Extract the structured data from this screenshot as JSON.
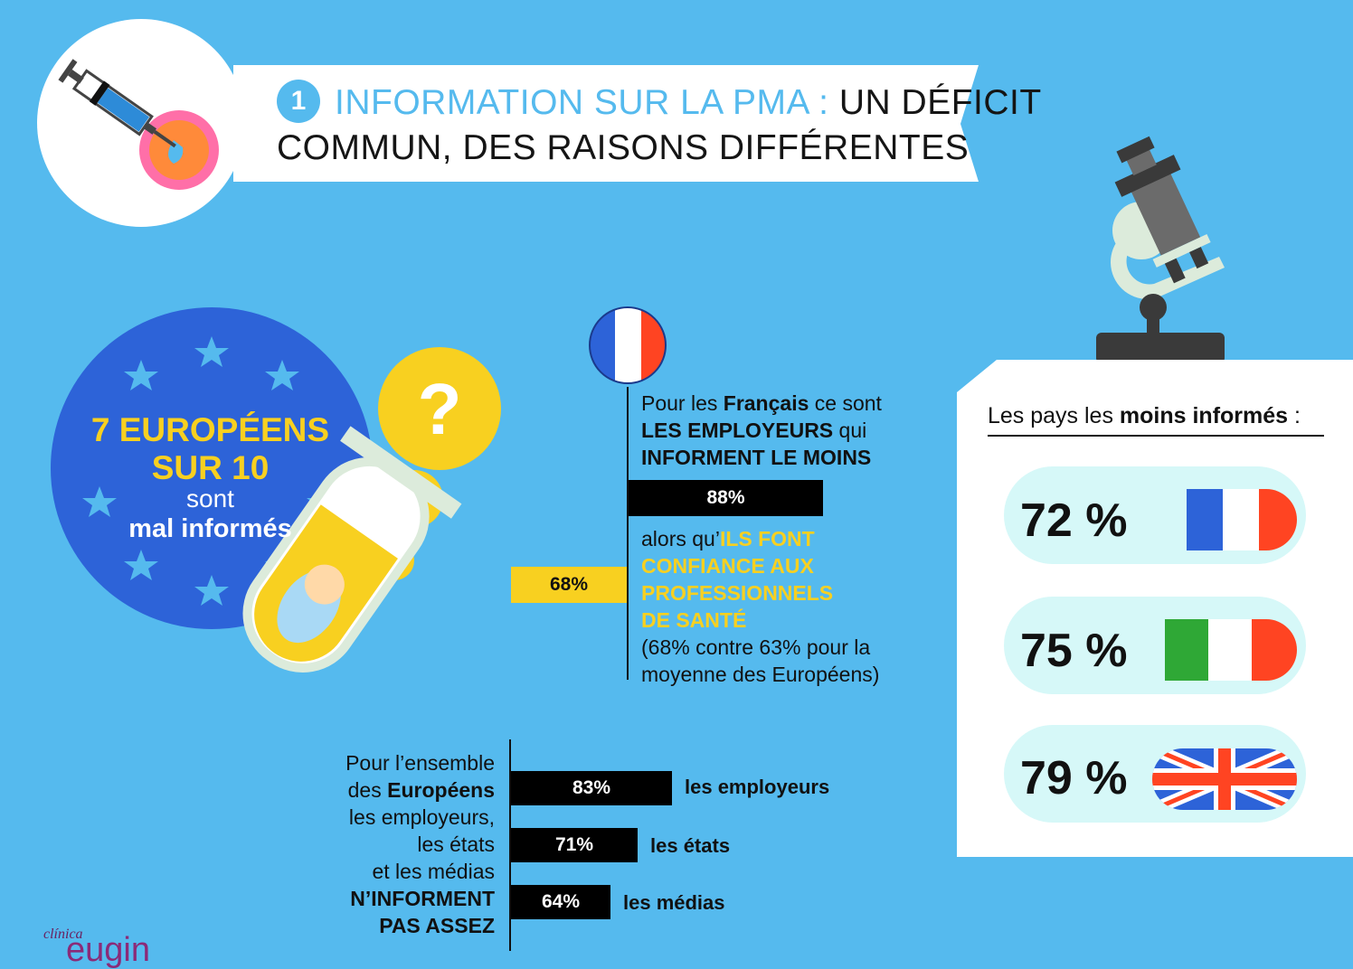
{
  "header": {
    "number": "1",
    "title_accent": "INFORMATION SUR LA PMA :",
    "title_dark": "UN DÉFICIT",
    "title_line2": "COMMUN, DES RAISONS DIFFÉRENTES"
  },
  "europe_circle": {
    "big_line1": "7 EUROPÉENS",
    "big_line2": "SUR 10",
    "sont": "sont",
    "mal_informes": "mal informés"
  },
  "france": {
    "line1_a": "Pour les ",
    "line1_b": "Français",
    "line1_c": " ce sont",
    "line2_a": "LES EMPLOYEURS",
    "line2_b": " qui",
    "line3": "INFORMENT LE MOINS",
    "bar_employers": "88%",
    "bar_employers_value": 88,
    "alors": "alors qu’",
    "yellow1": "ILS FONT",
    "yellow2": "CONFIANCE AUX",
    "yellow3": "PROFESSIONNELS",
    "yellow4": "DE SANTÉ",
    "note1": "(68% contre 63% pour la",
    "note2": "moyenne des Européens)",
    "bar_health": "68%",
    "bar_health_value": 68
  },
  "europeans": {
    "text_line1": "Pour l’ensemble",
    "text_line2_a": "des ",
    "text_line2_b": "Européens",
    "text_line3": "les employeurs,",
    "text_line4": "les états",
    "text_line5": "et les médias",
    "text_line6": "N’INFORMENT",
    "text_line7": "PAS ASSEZ",
    "bars": [
      {
        "label": "83%",
        "value": 83,
        "caption": "les employeurs"
      },
      {
        "label": "71%",
        "value": 71,
        "caption": "les états"
      },
      {
        "label": "64%",
        "value": 64,
        "caption": "les médias"
      }
    ]
  },
  "panel": {
    "title_a": "Les pays les ",
    "title_b": "moins informés",
    "title_c": " :",
    "countries": [
      {
        "pct": "72 %",
        "flag": "france-flag",
        "colors": [
          "#2D63D8",
          "#FFFFFF",
          "#FF4422"
        ]
      },
      {
        "pct": "75 %",
        "flag": "italy-flag",
        "colors": [
          "#2FA836",
          "#FFFFFF",
          "#FF4422"
        ]
      },
      {
        "pct": "79 %",
        "flag": "uk-flag",
        "colors": [
          "#2D63D8",
          "#FFFFFF",
          "#FF4422"
        ]
      }
    ]
  },
  "logo": {
    "small": "clínica",
    "big": "eugin"
  },
  "colors": {
    "background": "#55BAEE",
    "yellow": "#F8D020",
    "eu_blue": "#2D63D8",
    "logo_purple": "#8B2A78"
  }
}
